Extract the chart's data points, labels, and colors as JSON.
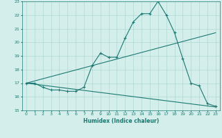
{
  "xlabel": "Humidex (Indice chaleur)",
  "xlim": [
    -0.5,
    23.5
  ],
  "ylim": [
    15,
    23
  ],
  "xticks": [
    0,
    1,
    2,
    3,
    4,
    5,
    6,
    7,
    8,
    9,
    10,
    11,
    12,
    13,
    14,
    15,
    16,
    17,
    18,
    19,
    20,
    21,
    22,
    23
  ],
  "yticks": [
    15,
    16,
    17,
    18,
    19,
    20,
    21,
    22,
    23
  ],
  "bg_color": "#d3eeeb",
  "line_color": "#1a7870",
  "grid_color": "#b0d8d3",
  "line1_x": [
    0,
    1,
    2,
    3,
    4,
    5,
    6,
    7,
    8,
    9,
    10,
    11,
    12,
    13,
    14,
    15,
    16,
    17,
    18,
    19,
    20,
    21,
    22,
    23
  ],
  "line1_y": [
    17.0,
    17.0,
    16.7,
    16.5,
    16.5,
    16.4,
    16.4,
    16.7,
    18.3,
    19.2,
    18.9,
    18.9,
    20.3,
    21.5,
    22.1,
    22.1,
    23.0,
    22.0,
    20.7,
    18.8,
    17.0,
    16.8,
    15.5,
    15.3
  ],
  "line2_x": [
    0,
    23
  ],
  "line2_y": [
    17.0,
    20.7
  ],
  "line3_x": [
    0,
    23
  ],
  "line3_y": [
    17.0,
    15.25
  ]
}
